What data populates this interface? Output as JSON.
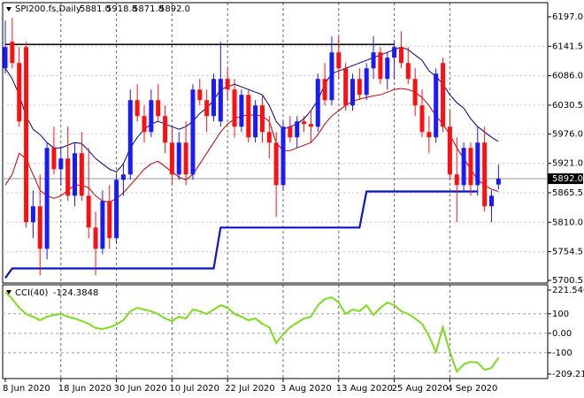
{
  "chart_data": {
    "type": "candlestick",
    "title": "SPI200.fs,Daily",
    "header_labels": [
      "5881.0",
      "5918.8",
      "5871.8",
      "5892.0"
    ],
    "categories": [
      "8 Jun 2020",
      null,
      null,
      null,
      null,
      null,
      null,
      null,
      "18 Jun 2020",
      null,
      null,
      null,
      null,
      null,
      null,
      null,
      "30 Jun 2020",
      null,
      null,
      null,
      null,
      null,
      null,
      null,
      "10 Jul 2020",
      null,
      null,
      null,
      null,
      null,
      null,
      null,
      "22 Jul 2020",
      null,
      null,
      null,
      null,
      null,
      null,
      null,
      "3 Aug 2020",
      null,
      null,
      null,
      null,
      null,
      null,
      null,
      "13 Aug 2020",
      null,
      null,
      null,
      null,
      null,
      null,
      null,
      "25 Aug 2020",
      null,
      null,
      null,
      null,
      null,
      null,
      null,
      "4 Sep 2020",
      null,
      null,
      null,
      null,
      null,
      null,
      null
    ],
    "open": [
      6100,
      6150,
      6110,
      6140,
      5810,
      5840,
      5760,
      5950,
      5910,
      5930,
      5860,
      5940,
      5860,
      5800,
      5760,
      5850,
      5780,
      5890,
      5900,
      6040,
      6010,
      5980,
      6040,
      6010,
      5960,
      5900,
      5960,
      5900,
      6060,
      6040,
      6010,
      6000,
      6080,
      6060,
      5990,
      6050,
      5970,
      6030,
      5980,
      5960,
      5880,
      5990,
      5970,
      6000,
      5995,
      5990,
      6080,
      6040,
      6130,
      6100,
      6030,
      6080,
      6050,
      6100,
      6130,
      6080,
      6120,
      6140,
      6110,
      6080,
      6030,
      5980,
      5970,
      6110,
      5990,
      5900,
      5880,
      5950,
      5880,
      5960,
      5840,
      5881.0
    ],
    "high": [
      6190,
      6195,
      6140,
      6150,
      5870,
      5900,
      5960,
      5990,
      5950,
      5990,
      5960,
      5980,
      5950,
      5830,
      5870,
      5880,
      5900,
      5920,
      6060,
      6070,
      6030,
      6060,
      6070,
      6030,
      5990,
      5980,
      6000,
      6070,
      6080,
      6060,
      6090,
      6150,
      6100,
      6080,
      6060,
      6060,
      6040,
      6050,
      6010,
      5980,
      6000,
      6010,
      6010,
      6010,
      6020,
      6090,
      6110,
      6160,
      6160,
      6110,
      6090,
      6100,
      6110,
      6160,
      6140,
      6130,
      6150,
      6170,
      6140,
      6100,
      6060,
      6010,
      6100,
      6120,
      6020,
      5970,
      5960,
      5960,
      5990,
      5990,
      5870,
      5918.8
    ],
    "low": [
      6090,
      6100,
      5990,
      5800,
      5780,
      5710,
      5740,
      5900,
      5880,
      5850,
      5840,
      5850,
      5780,
      5710,
      5750,
      5760,
      5770,
      5860,
      5890,
      6000,
      5960,
      5970,
      6000,
      5940,
      5880,
      5890,
      5880,
      5890,
      6030,
      5980,
      6000,
      5990,
      6040,
      5970,
      5980,
      5960,
      5960,
      5960,
      5930,
      5820,
      5870,
      5960,
      5950,
      5980,
      5960,
      5980,
      6030,
      6030,
      6080,
      6020,
      6020,
      6040,
      6040,
      6080,
      6070,
      6060,
      6080,
      6100,
      6070,
      6010,
      5970,
      5940,
      5960,
      5980,
      5890,
      5810,
      5870,
      5860,
      5860,
      5830,
      5810,
      5871.8
    ],
    "close": [
      6140,
      6110,
      6000,
      5810,
      5840,
      5760,
      5950,
      5910,
      5930,
      5860,
      5940,
      5860,
      5800,
      5760,
      5850,
      5780,
      5890,
      5900,
      6040,
      6010,
      5980,
      6040,
      6010,
      5960,
      5900,
      5960,
      5900,
      6060,
      6040,
      6010,
      6080,
      6080,
      6060,
      5990,
      6050,
      5970,
      6030,
      5980,
      5960,
      5880,
      5990,
      5970,
      6000,
      5995,
      5990,
      6080,
      6040,
      6130,
      6100,
      6030,
      6080,
      6050,
      6100,
      6130,
      6080,
      6120,
      6140,
      6110,
      6080,
      6030,
      5980,
      5970,
      6090,
      5990,
      5900,
      5880,
      5950,
      5880,
      5960,
      5840,
      5860,
      5892.0
    ],
    "up_color": "#1a1aff",
    "down_color": "#ff1010",
    "overlays": [
      {
        "color": "#00007a",
        "width": 1,
        "values": [
          6100,
          6080,
          6050,
          6010,
          5985,
          5975,
          5960,
          5950,
          5950,
          5955,
          5960,
          5958,
          5945,
          5930,
          5920,
          5910,
          5905,
          5920,
          5950,
          5970,
          5985,
          5995,
          6000,
          5995,
          5990,
          5985,
          5990,
          6000,
          6015,
          6025,
          6040,
          6060,
          6065,
          6070,
          6065,
          6060,
          6055,
          6050,
          6030,
          6000,
          5985,
          5990,
          5995,
          6005,
          6020,
          6040,
          6070,
          6090,
          6095,
          6100,
          6105,
          6110,
          6115,
          6120,
          6125,
          6130,
          6135,
          6140,
          6135,
          6125,
          6115,
          6095,
          6085,
          6070,
          6050,
          6035,
          6025,
          6005,
          5990,
          5980,
          5970,
          5962
        ]
      },
      {
        "color": "#c00000",
        "width": 1,
        "values": [
          5880,
          5900,
          5940,
          5930,
          5900,
          5870,
          5860,
          5855,
          5860,
          5870,
          5880,
          5880,
          5875,
          5860,
          5850,
          5848,
          5855,
          5865,
          5880,
          5895,
          5910,
          5920,
          5925,
          5915,
          5905,
          5895,
          5890,
          5900,
          5920,
          5940,
          5960,
          5980,
          5995,
          6005,
          6010,
          6012,
          6012,
          6010,
          6000,
          5960,
          5945,
          5945,
          5950,
          5955,
          5960,
          5975,
          5995,
          6010,
          6020,
          6030,
          6038,
          6042,
          6045,
          6048,
          6050,
          6055,
          6060,
          6062,
          6060,
          6055,
          6045,
          6030,
          6010,
          5995,
          5975,
          5950,
          5930,
          5910,
          5890,
          5880,
          5872,
          5868
        ]
      },
      {
        "color": "#0a14c8",
        "width": 2.2,
        "values": [
          5705,
          5723,
          5723,
          5723,
          5723,
          5723,
          5723,
          5723,
          5723,
          5723,
          5723,
          5723,
          5723,
          5723,
          5723,
          5723,
          5723,
          5723,
          5723,
          5723,
          5723,
          5723,
          5723,
          5723,
          5723,
          5723,
          5723,
          5723,
          5723,
          5723,
          5723,
          5800,
          5800,
          5800,
          5800,
          5800,
          5800,
          5800,
          5800,
          5800,
          5800,
          5800,
          5800,
          5800,
          5800,
          5800,
          5800,
          5800,
          5800,
          5800,
          5800,
          5800,
          5868,
          5868,
          5868,
          5868,
          5868,
          5868,
          5868,
          5868,
          5868,
          5868,
          5868,
          5868,
          5868,
          5868,
          5868,
          5868,
          5868,
          null,
          null,
          null
        ]
      },
      {
        "color": "#000000",
        "width": 1.5,
        "values": [
          6145,
          6145,
          6145,
          6145,
          6145,
          6145,
          6145,
          6145,
          6145,
          6145,
          6145,
          6145,
          6145,
          6145,
          6145,
          6145,
          6145,
          6145,
          6145,
          6145,
          6145,
          6145,
          6145,
          6145,
          6145,
          6145,
          6145,
          6145,
          6145,
          6145,
          6145,
          6145,
          6145,
          6145,
          6145,
          6145,
          6145,
          6145,
          6145,
          6145,
          6145,
          6145,
          6145,
          6145,
          6145,
          6145,
          6145,
          6145,
          6145,
          6145,
          6145,
          6145,
          6145,
          6145,
          6145,
          6145,
          6145,
          null,
          null,
          null,
          null,
          null,
          null,
          null,
          null,
          null,
          null,
          null,
          null,
          null,
          null,
          null
        ]
      }
    ],
    "last_price": {
      "value": 5892.0,
      "label": "5892.0"
    },
    "ylim": [
      5700.5,
      6197.0
    ],
    "yticks": [
      {
        "value": 6197.0,
        "label": "6197.0"
      },
      {
        "value": 6141.5,
        "label": "6141.5"
      },
      {
        "value": 6086.0,
        "label": "6086.0"
      },
      {
        "value": 6030.5,
        "label": "6030.5"
      },
      {
        "value": 5976.0,
        "label": "5976.0"
      },
      {
        "value": 5921.0,
        "label": "5921.0"
      },
      {
        "value": 5865.5,
        "label": "5865.5"
      },
      {
        "value": 5810.0,
        "label": "5810.0"
      },
      {
        "value": 5754.5,
        "label": "5754.5"
      },
      {
        "value": 5700.5,
        "label": "5700.5"
      }
    ],
    "grid": true,
    "cci": {
      "title": "CCI(40)",
      "color": "#7ddc1f",
      "values": [
        212,
        176,
        131,
        99,
        85,
        67,
        85,
        94,
        99,
        85,
        76,
        63,
        49,
        27,
        22,
        31,
        45,
        67,
        113,
        131,
        122,
        113,
        99,
        76,
        63,
        85,
        76,
        122,
        113,
        99,
        122,
        144,
        131,
        99,
        85,
        67,
        76,
        49,
        31,
        -50,
        -5,
        31,
        54,
        76,
        85,
        144,
        176,
        185,
        158,
        99,
        122,
        113,
        144,
        94,
        131,
        158,
        144,
        113,
        99,
        76,
        49,
        -14,
        -96,
        31,
        -96,
        -196,
        -159,
        -146,
        -150,
        -187,
        -178,
        -124.3848
      ],
      "ylim": [
        -209.211,
        221.546
      ],
      "yticks": [
        221.546,
        100,
        {
          "value": 0,
          "label": "0.00"
        },
        -100,
        -209.211
      ],
      "levels": [
        100,
        0,
        -100
      ]
    }
  }
}
